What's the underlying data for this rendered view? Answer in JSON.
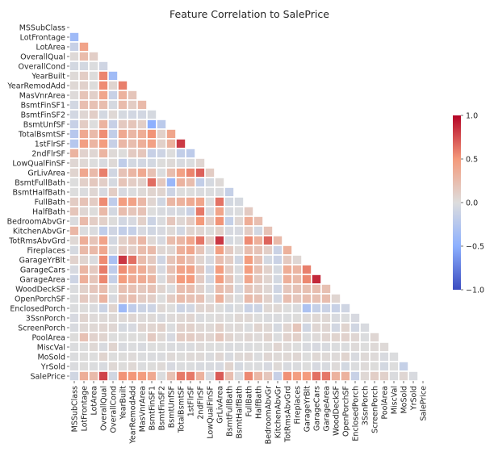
{
  "chart_data": {
    "type": "heatmap",
    "title": "Feature Correlation to SalePrice",
    "xlabel": "",
    "ylabel": "",
    "mask": "upper-triangle",
    "labels": [
      "MSSubClass",
      "LotFrontage",
      "LotArea",
      "OverallQual",
      "OverallCond",
      "YearBuilt",
      "YearRemodAdd",
      "MasVnrArea",
      "BsmtFinSF1",
      "BsmtFinSF2",
      "BsmtUnfSF",
      "TotalBsmtSF",
      "1stFlrSF",
      "2ndFlrSF",
      "LowQualFinSF",
      "GrLivArea",
      "BsmtFullBath",
      "BsmtHalfBath",
      "FullBath",
      "HalfBath",
      "BedroomAbvGr",
      "KitchenAbvGr",
      "TotRmsAbvGrd",
      "Fireplaces",
      "GarageYrBlt",
      "GarageCars",
      "GarageArea",
      "WoodDeckSF",
      "OpenPorchSF",
      "EnclosedPorch",
      "3SsnPorch",
      "ScreenPorch",
      "PoolArea",
      "MiscVal",
      "MoSold",
      "YrSold",
      "SalePrice"
    ],
    "colorbar": {
      "range": [
        -1.0,
        1.0
      ],
      "ticks": [
        "1.0",
        "0.5",
        "0.0",
        "−0.5",
        "−1.0"
      ],
      "colormap": "coolwarm"
    },
    "cells": [
      [],
      [
        -0.39
      ],
      [
        -0.14,
        0.43
      ],
      [
        0.03,
        0.25,
        0.11
      ],
      [
        -0.06,
        -0.06,
        -0.01,
        -0.09
      ],
      [
        0.03,
        0.12,
        0.01,
        0.57,
        -0.38
      ],
      [
        0.04,
        0.09,
        0.01,
        0.55,
        0.07,
        0.59
      ],
      [
        0.02,
        0.19,
        0.1,
        0.41,
        -0.13,
        0.32,
        0.18
      ],
      [
        -0.07,
        0.23,
        0.21,
        0.24,
        -0.05,
        0.25,
        0.13,
        0.26
      ],
      [
        -0.07,
        0.05,
        0.11,
        -0.06,
        0.04,
        -0.05,
        -0.07,
        -0.07,
        -0.05
      ],
      [
        -0.14,
        0.13,
        -0.0,
        0.31,
        -0.14,
        0.15,
        0.18,
        0.11,
        -0.5,
        -0.21
      ],
      [
        -0.24,
        0.39,
        0.26,
        0.54,
        -0.17,
        0.39,
        0.29,
        0.36,
        0.52,
        0.1,
        0.42
      ],
      [
        -0.25,
        0.46,
        0.3,
        0.48,
        -0.14,
        0.28,
        0.24,
        0.34,
        0.45,
        0.1,
        0.32,
        0.82
      ],
      [
        0.31,
        0.08,
        0.05,
        0.3,
        0.03,
        0.01,
        0.14,
        0.17,
        -0.14,
        -0.1,
        0.0,
        -0.17,
        -0.2
      ],
      [
        0.05,
        0.04,
        0.0,
        -0.03,
        0.03,
        -0.18,
        -0.06,
        -0.07,
        -0.06,
        0.01,
        0.03,
        -0.03,
        -0.01,
        0.06
      ],
      [
        0.07,
        0.4,
        0.26,
        0.59,
        -0.08,
        0.2,
        0.29,
        0.39,
        0.21,
        -0.01,
        0.24,
        0.45,
        0.57,
        0.69,
        0.13
      ],
      [
        0.0,
        0.1,
        0.16,
        0.11,
        -0.05,
        0.19,
        0.12,
        0.09,
        0.65,
        0.16,
        -0.42,
        0.31,
        0.24,
        -0.17,
        -0.05,
        0.03
      ],
      [
        -0.0,
        -0.01,
        0.05,
        -0.04,
        0.12,
        -0.04,
        -0.01,
        0.03,
        0.07,
        0.07,
        -0.1,
        -0.0,
        0.0,
        -0.02,
        -0.01,
        -0.02,
        -0.15
      ],
      [
        0.13,
        0.2,
        0.13,
        0.55,
        -0.19,
        0.47,
        0.44,
        0.28,
        0.06,
        -0.08,
        0.29,
        0.32,
        0.38,
        0.42,
        0.0,
        0.63,
        -0.06,
        -0.05
      ],
      [
        0.18,
        0.05,
        0.01,
        0.27,
        -0.06,
        0.24,
        0.18,
        0.2,
        0.0,
        -0.03,
        -0.04,
        -0.05,
        -0.12,
        0.61,
        -0.03,
        0.42,
        -0.03,
        -0.01,
        0.14
      ],
      [
        -0.02,
        0.26,
        0.12,
        0.1,
        0.01,
        -0.07,
        -0.04,
        0.1,
        -0.11,
        -0.02,
        0.17,
        0.05,
        0.13,
        0.5,
        0.11,
        0.52,
        -0.15,
        0.05,
        0.36,
        0.23
      ],
      [
        0.28,
        -0.01,
        -0.02,
        -0.18,
        -0.09,
        -0.17,
        -0.15,
        -0.04,
        -0.08,
        -0.04,
        0.03,
        -0.07,
        0.07,
        0.06,
        0.01,
        0.1,
        -0.04,
        -0.04,
        0.13,
        -0.07,
        0.2
      ],
      [
        0.04,
        0.35,
        0.19,
        0.43,
        -0.06,
        0.1,
        0.19,
        0.28,
        0.04,
        -0.04,
        0.25,
        0.29,
        0.41,
        0.62,
        0.13,
        0.83,
        -0.05,
        -0.02,
        0.55,
        0.34,
        0.68,
        0.26
      ],
      [
        -0.05,
        0.27,
        0.27,
        0.4,
        -0.02,
        0.15,
        0.11,
        0.25,
        0.26,
        0.05,
        0.05,
        0.34,
        0.41,
        0.19,
        -0.02,
        0.46,
        0.14,
        0.03,
        0.24,
        0.2,
        0.11,
        -0.12,
        0.33
      ],
      [
        0.08,
        0.07,
        -0.02,
        0.55,
        -0.32,
        0.83,
        0.64,
        0.25,
        0.15,
        -0.09,
        0.19,
        0.32,
        0.23,
        0.07,
        -0.04,
        0.23,
        0.12,
        -0.08,
        0.48,
        0.2,
        -0.06,
        -0.12,
        0.15,
        0.05
      ],
      [
        -0.04,
        0.29,
        0.15,
        0.6,
        -0.19,
        0.54,
        0.42,
        0.36,
        0.22,
        -0.04,
        0.21,
        0.43,
        0.44,
        0.18,
        -0.09,
        0.47,
        0.13,
        -0.02,
        0.47,
        0.22,
        0.09,
        -0.05,
        0.36,
        0.3,
        0.59
      ],
      [
        -0.1,
        0.34,
        0.18,
        0.56,
        -0.15,
        0.48,
        0.37,
        0.37,
        0.3,
        -0.02,
        0.18,
        0.49,
        0.49,
        0.14,
        -0.07,
        0.47,
        0.18,
        -0.02,
        0.41,
        0.16,
        0.07,
        -0.06,
        0.34,
        0.27,
        0.56,
        0.88
      ],
      [
        -0.01,
        0.09,
        0.17,
        0.24,
        -0.0,
        0.22,
        0.21,
        0.16,
        0.2,
        0.07,
        -0.01,
        0.23,
        0.24,
        0.09,
        -0.03,
        0.25,
        0.18,
        -0.04,
        0.19,
        0.11,
        0.05,
        -0.09,
        0.17,
        0.2,
        0.22,
        0.23,
        0.22
      ],
      [
        -0.01,
        0.15,
        0.08,
        0.31,
        -0.03,
        0.19,
        0.23,
        0.13,
        0.11,
        0.0,
        0.13,
        0.25,
        0.21,
        0.21,
        0.02,
        0.33,
        0.07,
        -0.01,
        0.26,
        0.2,
        0.09,
        -0.07,
        0.23,
        0.17,
        0.23,
        0.21,
        0.24,
        0.06
      ],
      [
        -0.01,
        0.01,
        -0.02,
        -0.11,
        0.07,
        -0.39,
        -0.19,
        -0.11,
        -0.1,
        0.04,
        -0.0,
        -0.1,
        -0.07,
        0.06,
        0.06,
        0.01,
        -0.05,
        -0.01,
        -0.12,
        -0.1,
        0.04,
        0.04,
        0.0,
        -0.02,
        -0.3,
        -0.15,
        -0.12,
        -0.13,
        -0.09
      ],
      [
        -0.04,
        0.07,
        0.02,
        0.03,
        0.03,
        0.03,
        0.05,
        0.02,
        0.03,
        -0.03,
        0.02,
        0.04,
        0.06,
        -0.02,
        -0.0,
        0.02,
        -0.0,
        0.04,
        0.04,
        -0.0,
        -0.02,
        -0.02,
        -0.01,
        0.01,
        0.02,
        0.04,
        0.04,
        -0.03,
        -0.01,
        -0.04
      ],
      [
        -0.03,
        0.04,
        0.04,
        0.06,
        0.05,
        -0.05,
        -0.04,
        0.06,
        0.06,
        0.09,
        -0.01,
        0.08,
        0.09,
        0.04,
        0.03,
        0.1,
        0.02,
        0.03,
        -0.01,
        0.07,
        0.04,
        -0.05,
        0.06,
        0.18,
        -0.08,
        0.05,
        0.05,
        -0.07,
        0.07,
        -0.08,
        -0.03
      ],
      [
        0.01,
        0.21,
        0.08,
        0.07,
        -0.0,
        0.0,
        0.01,
        0.01,
        0.14,
        0.04,
        -0.04,
        0.13,
        0.13,
        0.08,
        0.06,
        0.17,
        0.07,
        0.02,
        0.05,
        0.02,
        0.07,
        -0.01,
        0.08,
        0.1,
        -0.01,
        0.02,
        0.06,
        0.07,
        0.08,
        0.05,
        -0.01,
        0.05
      ],
      [
        -0.01,
        0.0,
        0.04,
        -0.03,
        0.07,
        -0.03,
        -0.01,
        -0.03,
        0.0,
        0.0,
        -0.02,
        -0.02,
        -0.02,
        0.02,
        -0.0,
        -0.0,
        -0.02,
        -0.01,
        -0.01,
        0.0,
        0.01,
        0.06,
        0.02,
        0.0,
        -0.03,
        -0.04,
        -0.03,
        -0.01,
        -0.01,
        0.02,
        0.0,
        0.03,
        0.03
      ],
      [
        -0.01,
        0.01,
        0.0,
        0.07,
        -0.0,
        0.01,
        0.02,
        -0.01,
        -0.02,
        -0.02,
        0.03,
        0.01,
        0.03,
        0.03,
        -0.02,
        0.05,
        -0.03,
        0.03,
        0.05,
        -0.01,
        0.05,
        0.03,
        0.04,
        0.05,
        0.0,
        0.04,
        0.03,
        0.02,
        0.07,
        -0.03,
        0.03,
        0.02,
        -0.03,
        -0.01
      ],
      [
        -0.02,
        0.01,
        -0.01,
        -0.03,
        0.04,
        0.01,
        0.04,
        -0.01,
        0.01,
        0.03,
        -0.04,
        -0.01,
        -0.01,
        -0.03,
        -0.03,
        -0.04,
        0.07,
        -0.05,
        -0.01,
        -0.01,
        -0.04,
        0.03,
        -0.03,
        -0.02,
        -0.0,
        -0.04,
        -0.03,
        0.02,
        -0.06,
        -0.01,
        0.02,
        0.01,
        -0.06,
        0.0,
        -0.15
      ],
      [
        -0.08,
        0.35,
        0.26,
        0.79,
        -0.08,
        0.52,
        0.51,
        0.48,
        0.39,
        -0.01,
        0.21,
        0.61,
        0.61,
        0.32,
        -0.03,
        0.71,
        0.23,
        -0.02,
        0.56,
        0.28,
        0.17,
        -0.14,
        0.53,
        0.47,
        0.49,
        0.64,
        0.62,
        0.32,
        0.32,
        -0.13,
        0.04,
        0.11,
        0.09,
        -0.02,
        0.05,
        -0.03
      ]
    ]
  }
}
